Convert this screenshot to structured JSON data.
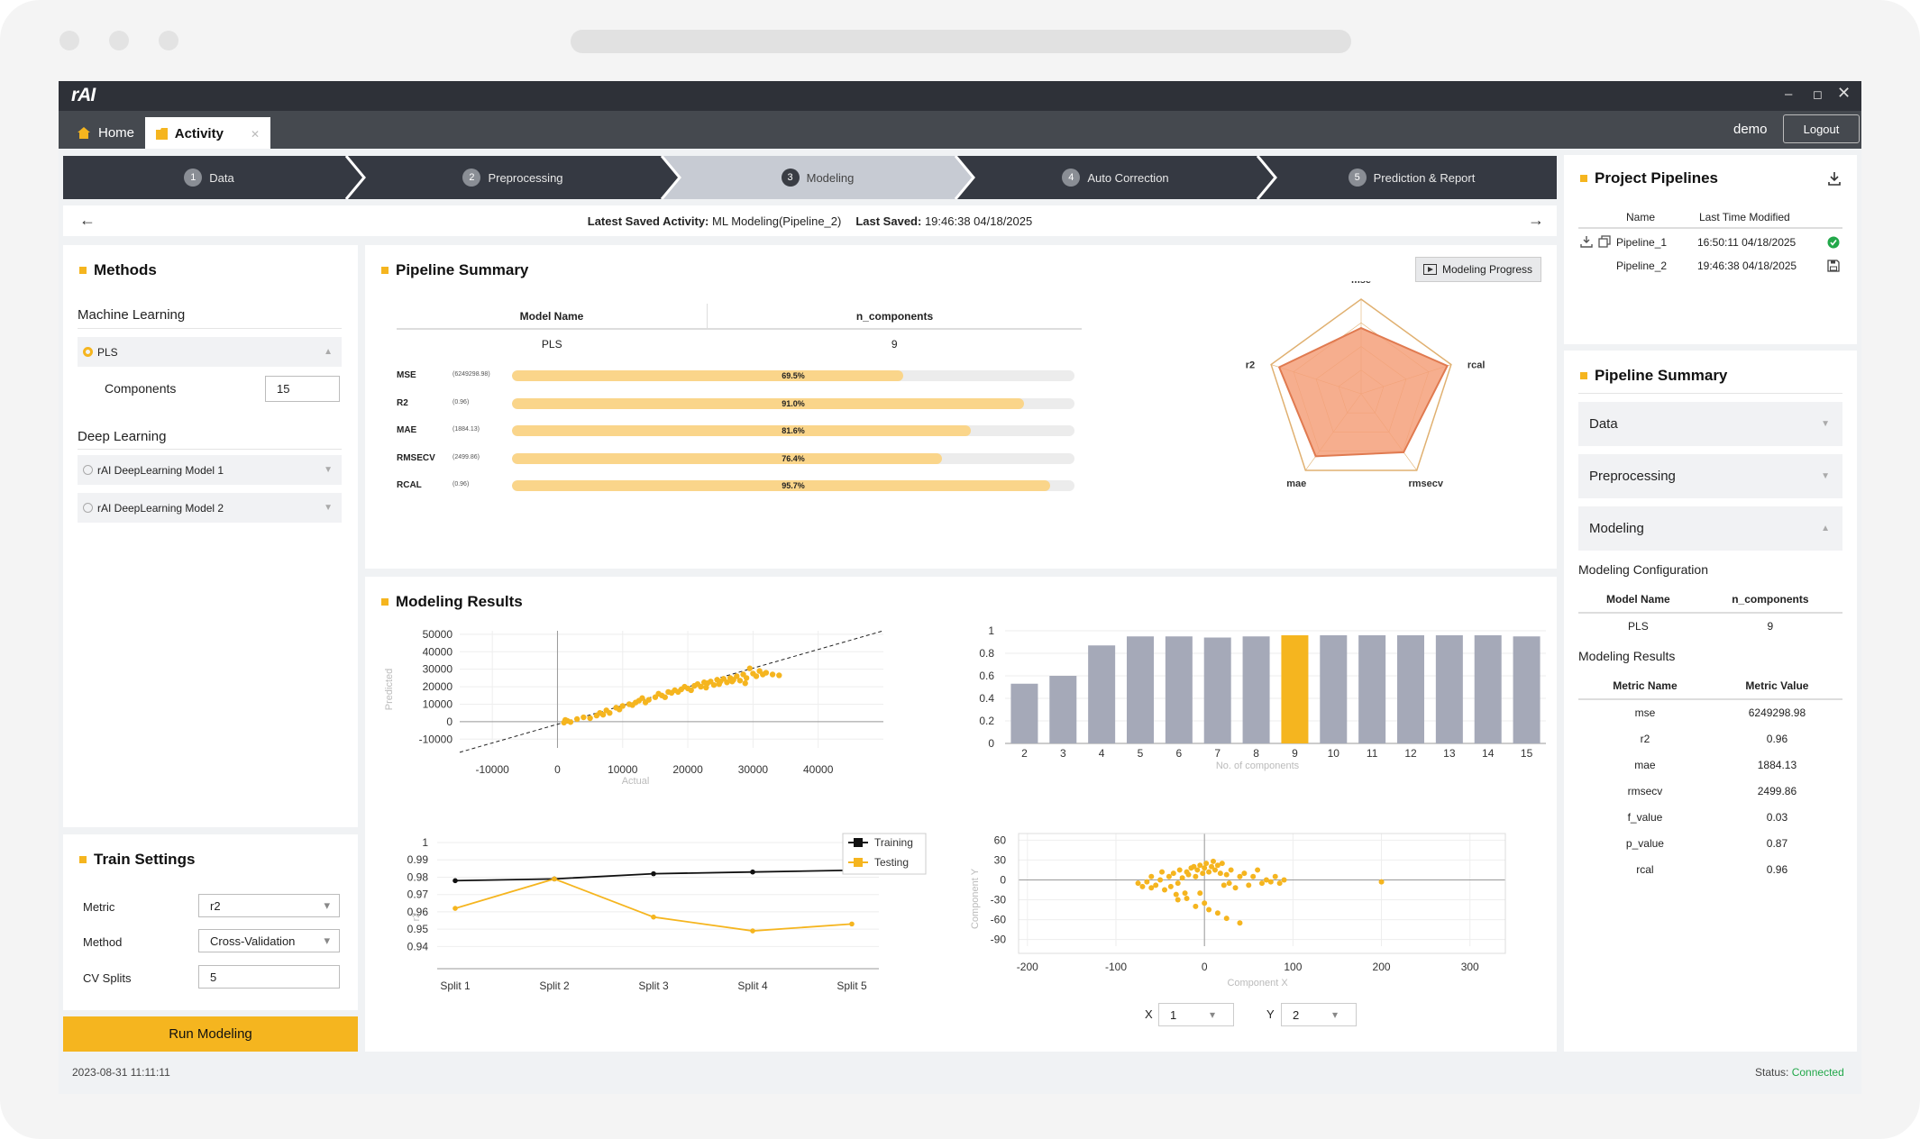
{
  "app": {
    "logo": "rAI",
    "user": "demo",
    "logout": "Logout"
  },
  "tabs": [
    {
      "label": "Home"
    },
    {
      "label": "Activity"
    }
  ],
  "steps": [
    {
      "num": "1",
      "label": "Data"
    },
    {
      "num": "2",
      "label": "Preprocessing"
    },
    {
      "num": "3",
      "label": "Modeling"
    },
    {
      "num": "4",
      "label": "Auto Correction"
    },
    {
      "num": "5",
      "label": "Prediction & Report"
    }
  ],
  "savebar": {
    "activity_label": "Latest Saved Activity:",
    "activity_value": "ML Modeling(Pipeline_2)",
    "saved_label": "Last Saved:",
    "saved_value": "19:46:38 04/18/2025"
  },
  "methods": {
    "title": "Methods",
    "ml_heading": "Machine Learning",
    "pls_label": "PLS",
    "components_label": "Components",
    "components_value": "15",
    "dl_heading": "Deep Learning",
    "dl_model1": "rAI DeepLearning Model 1",
    "dl_model2": "rAI DeepLearning Model 2"
  },
  "train": {
    "title": "Train Settings",
    "metric_label": "Metric",
    "metric_value": "r2",
    "method_label": "Method",
    "method_value": "Cross-Validation",
    "splits_label": "CV Splits",
    "splits_value": "5",
    "run_label": "Run Modeling"
  },
  "pipeline_summary": {
    "title": "Pipeline Summary",
    "progress_button": "Modeling Progress",
    "col_model": "Model Name",
    "col_ncomp": "n_components",
    "model": "PLS",
    "ncomp": "9",
    "metrics": [
      {
        "name": "MSE",
        "value": "(6249298.98)",
        "pct": "69.5%",
        "fraction": 0.695
      },
      {
        "name": "R2",
        "value": "(0.96)",
        "pct": "91.0%",
        "fraction": 0.91
      },
      {
        "name": "MAE",
        "value": "(1884.13)",
        "pct": "81.6%",
        "fraction": 0.816
      },
      {
        "name": "RMSECV",
        "value": "(2499.86)",
        "pct": "76.4%",
        "fraction": 0.764
      },
      {
        "name": "RCAL",
        "value": "(0.96)",
        "pct": "95.7%",
        "fraction": 0.957
      }
    ],
    "radar": {
      "axes": [
        "mse",
        "rcal",
        "rmsecv",
        "mae",
        "r2"
      ],
      "values": [
        0.695,
        0.957,
        0.764,
        0.816,
        0.91
      ]
    }
  },
  "results": {
    "title": "Modeling Results",
    "x_label": "X",
    "x_value": "1",
    "y_label": "Y",
    "y_value": "2"
  },
  "chart_data": [
    {
      "type": "scatter",
      "xlabel": "Actual",
      "ylabel": "Predicted",
      "xticks": [
        "-10000",
        "0",
        "10000",
        "20000",
        "30000",
        "40000"
      ],
      "yticks": [
        "50000",
        "40000",
        "30000",
        "20000",
        "10000",
        "0",
        "-10000"
      ],
      "xlim": [
        -15000,
        50000
      ],
      "ylim": [
        -15000,
        52000
      ],
      "points": [
        [
          1000,
          -500
        ],
        [
          1500,
          500
        ],
        [
          2000,
          -200
        ],
        [
          1200,
          1000
        ],
        [
          5000,
          2000
        ],
        [
          6000,
          3500
        ],
        [
          7000,
          4000
        ],
        [
          8000,
          5000
        ],
        [
          7500,
          6500
        ],
        [
          9000,
          8000
        ],
        [
          10000,
          9000
        ],
        [
          11000,
          10000
        ],
        [
          12000,
          11000
        ],
        [
          12500,
          12000
        ],
        [
          13000,
          13500
        ],
        [
          14000,
          12500
        ],
        [
          15000,
          14000
        ],
        [
          15500,
          16000
        ],
        [
          16000,
          15000
        ],
        [
          17000,
          17000
        ],
        [
          17500,
          16500
        ],
        [
          18000,
          18000
        ],
        [
          19000,
          18500
        ],
        [
          19500,
          20000
        ],
        [
          20000,
          19000
        ],
        [
          21000,
          20500
        ],
        [
          21500,
          21500
        ],
        [
          22000,
          20000
        ],
        [
          22500,
          22500
        ],
        [
          23000,
          22000
        ],
        [
          23500,
          23000
        ],
        [
          24000,
          21000
        ],
        [
          24500,
          24000
        ],
        [
          25000,
          23000
        ],
        [
          25500,
          24500
        ],
        [
          26000,
          22500
        ],
        [
          26500,
          25000
        ],
        [
          27000,
          24000
        ],
        [
          27500,
          26000
        ],
        [
          28000,
          23500
        ],
        [
          28500,
          27000
        ],
        [
          29000,
          25000
        ],
        [
          30000,
          27500
        ],
        [
          30500,
          26000
        ],
        [
          31000,
          29000
        ],
        [
          32000,
          28000
        ],
        [
          33000,
          27000
        ],
        [
          34000,
          26500
        ],
        [
          3000,
          1500
        ],
        [
          4000,
          2500
        ],
        [
          6500,
          5000
        ],
        [
          9500,
          7000
        ],
        [
          11500,
          9500
        ],
        [
          13500,
          11000
        ],
        [
          16500,
          14000
        ],
        [
          18500,
          17000
        ],
        [
          20500,
          18000
        ],
        [
          22800,
          19500
        ],
        [
          24800,
          21500
        ],
        [
          26800,
          23000
        ],
        [
          28800,
          22000
        ],
        [
          29500,
          30500
        ],
        [
          31500,
          27000
        ]
      ]
    },
    {
      "type": "bar",
      "xlabel": "No. of components",
      "ylabel": "r2",
      "categories": [
        "2",
        "3",
        "4",
        "5",
        "6",
        "7",
        "8",
        "9",
        "10",
        "11",
        "12",
        "13",
        "14",
        "15"
      ],
      "values": [
        0.53,
        0.6,
        0.87,
        0.95,
        0.95,
        0.94,
        0.95,
        0.96,
        0.96,
        0.96,
        0.96,
        0.96,
        0.96,
        0.95
      ],
      "highlight": "9",
      "yticks": [
        "1",
        "0.8",
        "0.6",
        "0.4",
        "0.2",
        "0"
      ],
      "ylim": [
        0,
        1
      ]
    },
    {
      "type": "line",
      "ylabel": "r2",
      "categories": [
        "Split 1",
        "Split 2",
        "Split 3",
        "Split 4",
        "Split 5"
      ],
      "series": [
        {
          "name": "Training",
          "values": [
            0.978,
            0.979,
            0.982,
            0.983,
            0.984
          ]
        },
        {
          "name": "Testing",
          "values": [
            0.962,
            0.979,
            0.957,
            0.949,
            0.953
          ]
        }
      ],
      "yticks": [
        "1",
        "0.99",
        "0.98",
        "0.97",
        "0.96",
        "0.95",
        "0.94"
      ],
      "ylim": [
        0.935,
        1.0
      ]
    },
    {
      "type": "scatter",
      "xlabel": "Component X",
      "ylabel": "Component Y",
      "xticks": [
        "-200",
        "-100",
        "0",
        "100",
        "200",
        "300"
      ],
      "yticks": [
        "60",
        "30",
        "0",
        "-30",
        "-60",
        "-90"
      ],
      "xlim": [
        -210,
        340
      ],
      "ylim": [
        -100,
        70
      ],
      "points": [
        [
          -75,
          -5
        ],
        [
          -70,
          -10
        ],
        [
          -65,
          -3
        ],
        [
          -60,
          -12
        ],
        [
          -55,
          -8
        ],
        [
          -50,
          0
        ],
        [
          -45,
          -15
        ],
        [
          -40,
          5
        ],
        [
          -38,
          -10
        ],
        [
          -35,
          10
        ],
        [
          -30,
          -5
        ],
        [
          -28,
          15
        ],
        [
          -25,
          3
        ],
        [
          -22,
          -20
        ],
        [
          -20,
          12
        ],
        [
          -18,
          8
        ],
        [
          -15,
          18
        ],
        [
          -12,
          20
        ],
        [
          -10,
          5
        ],
        [
          -8,
          15
        ],
        [
          -5,
          22
        ],
        [
          -2,
          10
        ],
        [
          0,
          18
        ],
        [
          2,
          25
        ],
        [
          5,
          12
        ],
        [
          8,
          20
        ],
        [
          10,
          28
        ],
        [
          12,
          15
        ],
        [
          15,
          22
        ],
        [
          18,
          10
        ],
        [
          20,
          25
        ],
        [
          22,
          -8
        ],
        [
          25,
          8
        ],
        [
          28,
          -5
        ],
        [
          30,
          15
        ],
        [
          35,
          -12
        ],
        [
          40,
          5
        ],
        [
          45,
          10
        ],
        [
          50,
          -8
        ],
        [
          55,
          5
        ],
        [
          60,
          15
        ],
        [
          65,
          -5
        ],
        [
          70,
          0
        ],
        [
          75,
          -3
        ],
        [
          80,
          5
        ],
        [
          85,
          -5
        ],
        [
          90,
          0
        ],
        [
          -30,
          -30
        ],
        [
          -20,
          -28
        ],
        [
          -10,
          -40
        ],
        [
          0,
          -35
        ],
        [
          5,
          -45
        ],
        [
          15,
          -50
        ],
        [
          25,
          -58
        ],
        [
          40,
          -65
        ],
        [
          200,
          -3
        ],
        [
          -60,
          5
        ],
        [
          -48,
          12
        ],
        [
          -32,
          -22
        ],
        [
          -5,
          -20
        ]
      ]
    }
  ],
  "right": {
    "pipelines_title": "Project Pipelines",
    "col_name": "Name",
    "col_time": "Last Time Modified",
    "pipelines": [
      {
        "name": "Pipeline_1",
        "time": "16:50:11 04/18/2025"
      },
      {
        "name": "Pipeline_2",
        "time": "19:46:38 04/18/2025"
      }
    ],
    "summary_title": "Pipeline Summary",
    "acc_data": "Data",
    "acc_pre": "Preprocessing",
    "acc_model": "Modeling",
    "config_title": "Modeling Configuration",
    "config_col_model": "Model Name",
    "config_col_ncomp": "n_components",
    "config_model": "PLS",
    "config_ncomp": "9",
    "results_title": "Modeling Results",
    "results_col_name": "Metric Name",
    "results_col_value": "Metric Value",
    "results_rows": [
      {
        "name": "mse",
        "value": "6249298.98"
      },
      {
        "name": "r2",
        "value": "0.96"
      },
      {
        "name": "mae",
        "value": "1884.13"
      },
      {
        "name": "rmsecv",
        "value": "2499.86"
      },
      {
        "name": "f_value",
        "value": "0.03"
      },
      {
        "name": "p_value",
        "value": "0.87"
      },
      {
        "name": "rcal",
        "value": "0.96"
      }
    ]
  },
  "footer": {
    "date": "2023-08-31 11:11:11",
    "status_label": "Status:",
    "status_value": "Connected"
  },
  "colors": {
    "accent": "#f5b51f",
    "bar": "#a5a9b8",
    "radar": "#f4a07a",
    "ok": "#22a84a"
  }
}
